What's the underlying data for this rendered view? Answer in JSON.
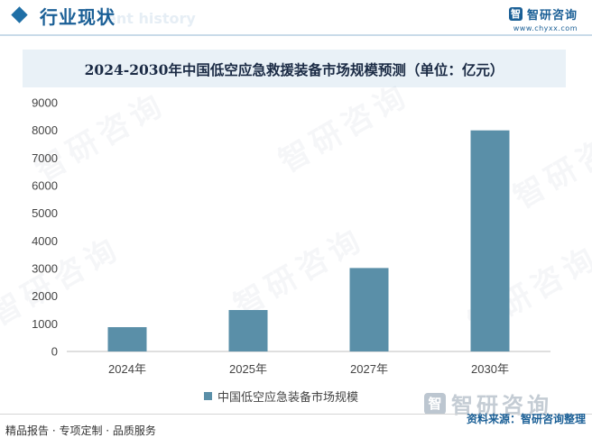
{
  "header": {
    "section_title": "行业现状",
    "section_title_ghost": "ent history",
    "brand_name": "智研咨询",
    "brand_url": "www.chyxx.com",
    "logo_glyph": "智"
  },
  "watermark_text": "智研咨询",
  "chart_data": {
    "type": "bar",
    "title": "2024-2030年中国低空应急救援装备市场规模预测（单位：亿元）",
    "categories": [
      "2024年",
      "2025年",
      "2027年",
      "2030年"
    ],
    "series": [
      {
        "name": "中国低空应急装备市场规模",
        "values": [
          880,
          1500,
          3020,
          8000
        ]
      }
    ],
    "ylim": [
      0,
      9000
    ],
    "yticks": [
      0,
      1000,
      2000,
      3000,
      4000,
      5000,
      6000,
      7000,
      8000,
      9000
    ],
    "grid": false,
    "legend_position": "bottom",
    "bar_color": "#5a8fa8"
  },
  "footer": {
    "left_text": "精品报告 · 专项定制 · 品质服务",
    "source_text": "资料来源：智研咨询整理",
    "logo_name": "智研咨询",
    "logo_glyph": "智"
  }
}
